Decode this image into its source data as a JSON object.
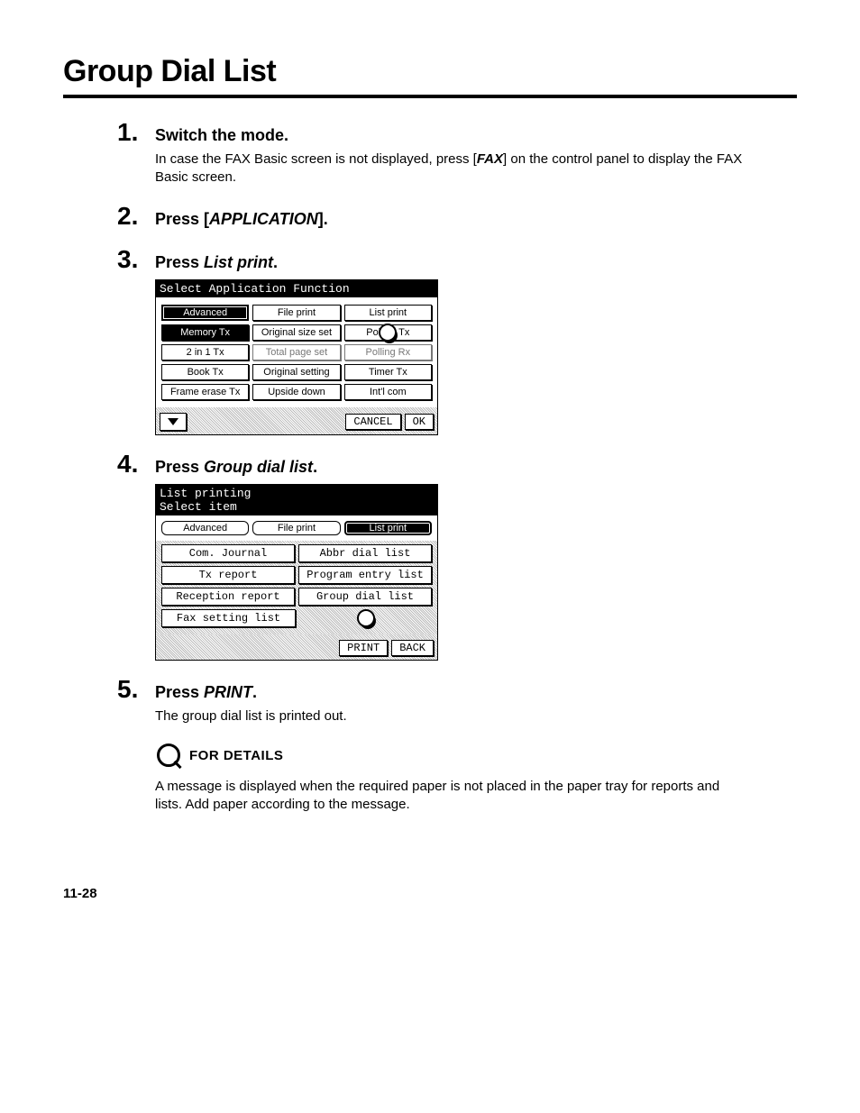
{
  "title": "Group Dial List",
  "steps": [
    {
      "num": "1.",
      "title_plain": "Switch the mode.",
      "body_before": "In case the FAX Basic screen is not displayed, press [",
      "body_italic": "FAX",
      "body_after": "] on the control panel to display the FAX Basic screen."
    },
    {
      "num": "2.",
      "title_prefix": "Press [",
      "title_italic": "APPLICATION",
      "title_suffix": "]."
    },
    {
      "num": "3.",
      "title_prefix": "Press ",
      "title_italic": "List print",
      "title_suffix": "."
    },
    {
      "num": "4.",
      "title_prefix": "Press ",
      "title_italic": "Group dial list",
      "title_suffix": "."
    },
    {
      "num": "5.",
      "title_prefix": "Press ",
      "title_italic": "PRINT",
      "title_suffix": ".",
      "body_plain": "The group dial list is printed out."
    }
  ],
  "screen1": {
    "header": "Select Application Function",
    "rows": [
      [
        "Advanced",
        "File print",
        "List print"
      ],
      [
        "Memory Tx",
        "Original size set",
        "Polling Tx"
      ],
      [
        "2 in 1 Tx",
        "Total page set",
        "Polling Rx"
      ],
      [
        "Book Tx",
        "Original setting",
        "Timer Tx"
      ],
      [
        "Frame erase Tx",
        "Upside down",
        "Int'l com"
      ]
    ],
    "cancel": "CANCEL",
    "ok": "OK"
  },
  "screen2": {
    "header1": "List printing",
    "header2": "Select item",
    "tabs": [
      "Advanced",
      "File print",
      "List print"
    ],
    "left": [
      "Com. Journal",
      "Tx report",
      "Reception report",
      "Fax setting list"
    ],
    "right": [
      "Abbr dial list",
      "Program entry list",
      "Group dial list"
    ],
    "print": "PRINT",
    "back": "BACK"
  },
  "details_label": "FOR DETAILS",
  "details_text": "A message is displayed when the required paper is not placed in the paper tray for reports and lists. Add paper according to the message.",
  "page_number": "11-28"
}
